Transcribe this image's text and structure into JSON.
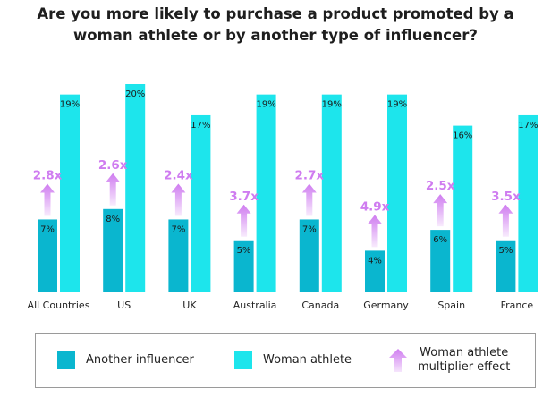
{
  "chart_data": {
    "type": "bar",
    "title": "Are you more likely to purchase a product promoted by a woman athlete or by another type of influencer?",
    "title_lines": [
      "Are you more likely to purchase a product promoted by a",
      "woman athlete or by another type of influencer?"
    ],
    "categories": [
      "All Countries",
      "US",
      "UK",
      "Australia",
      "Canada",
      "Germany",
      "Spain",
      "France"
    ],
    "series": [
      {
        "name": "Another influencer",
        "values": [
          7,
          8,
          7,
          5,
          7,
          4,
          6,
          5
        ],
        "labels": [
          "7%",
          "8%",
          "7%",
          "5%",
          "7%",
          "4%",
          "6%",
          "5%"
        ],
        "color": "#0ab6cf"
      },
      {
        "name": "Woman athlete",
        "values": [
          19,
          20,
          17,
          19,
          19,
          19,
          16,
          17
        ],
        "labels": [
          "19%",
          "20%",
          "17%",
          "19%",
          "19%",
          "19%",
          "16%",
          "17%"
        ],
        "color": "#1de5ec"
      }
    ],
    "multiplier": {
      "name": "Woman athlete multiplier effect",
      "values": [
        2.8,
        2.6,
        2.4,
        3.7,
        2.7,
        4.9,
        2.5,
        3.5
      ],
      "labels": [
        "2.8x",
        "2.6x",
        "2.4x",
        "3.7x",
        "2.7x",
        "4.9x",
        "2.5x",
        "3.5x"
      ],
      "color": "#cf7cf0"
    },
    "unit": "%",
    "ylim": [
      0,
      20
    ],
    "grid": false,
    "legend_position": "bottom"
  },
  "legend": {
    "items": [
      {
        "label": "Another influencer",
        "color": "#0ab6cf",
        "kind": "swatch"
      },
      {
        "label": "Woman athlete",
        "color": "#1de5ec",
        "kind": "swatch"
      },
      {
        "label": "Woman athlete\nmultiplier effect",
        "color": "#cf7cf0",
        "kind": "arrow"
      }
    ]
  },
  "colors": {
    "text": "#222222",
    "legend_border": "#9a9a9a"
  }
}
